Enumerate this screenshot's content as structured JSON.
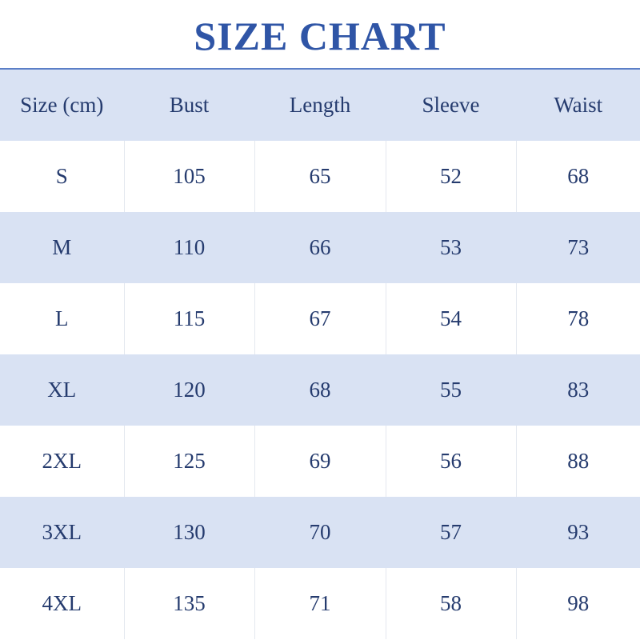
{
  "title": "SIZE CHART",
  "colors": {
    "title": "#2f55a6",
    "header_bg": "#d9e2f3",
    "text": "#253b6e",
    "rule": "#5b7fc7"
  },
  "headers": [
    "Size (cm)",
    "Bust",
    "Length",
    "Sleeve",
    "Waist"
  ],
  "rows": [
    [
      "S",
      "105",
      "65",
      "52",
      "68"
    ],
    [
      "M",
      "110",
      "66",
      "53",
      "73"
    ],
    [
      "L",
      "115",
      "67",
      "54",
      "78"
    ],
    [
      "XL",
      "120",
      "68",
      "55",
      "83"
    ],
    [
      "2XL",
      "125",
      "69",
      "56",
      "88"
    ],
    [
      "3XL",
      "130",
      "70",
      "57",
      "93"
    ],
    [
      "4XL",
      "135",
      "71",
      "58",
      "98"
    ]
  ]
}
